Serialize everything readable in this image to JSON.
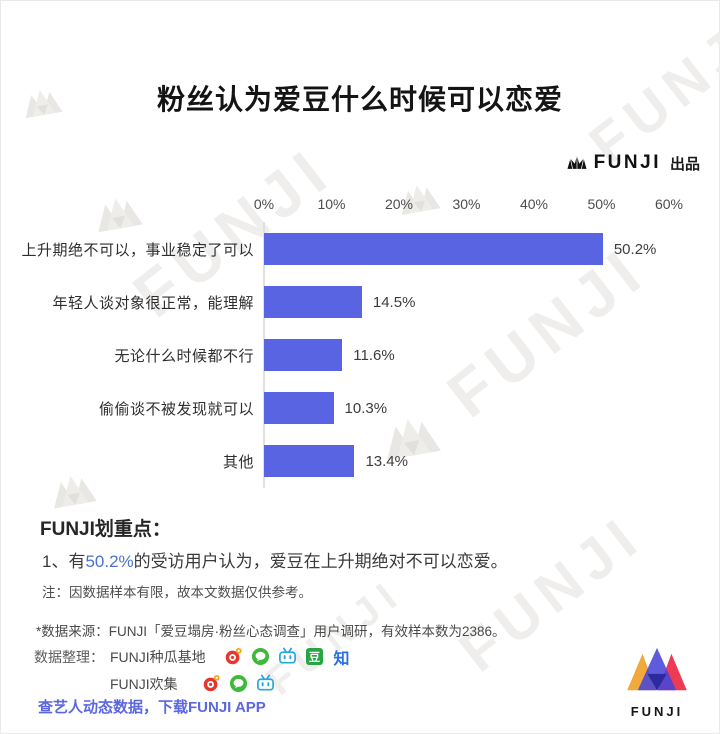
{
  "page": {
    "title": "粉丝认为爱豆什么时候可以恋爱",
    "brand": "FUNJI",
    "brand_suffix": "出品"
  },
  "chart_data": {
    "type": "bar",
    "orientation": "horizontal",
    "title": "粉丝认为爱豆什么时候可以恋爱",
    "categories": [
      "上升期绝不可以，事业稳定了可以",
      "年轻人谈对象很正常，能理解",
      "无论什么时候都不行",
      "偷偷谈不被发现就可以",
      "其他"
    ],
    "values": [
      50.2,
      14.5,
      11.6,
      10.3,
      13.4
    ],
    "value_labels": [
      "50.2%",
      "14.5%",
      "11.6%",
      "10.3%",
      "13.4%"
    ],
    "x_ticks": [
      "0%",
      "10%",
      "20%",
      "30%",
      "40%",
      "50%",
      "60%"
    ],
    "xlim": [
      0,
      60
    ],
    "xlabel": "",
    "ylabel": "",
    "grid": "none",
    "legend": "none",
    "bar_color": "#5864e2"
  },
  "highlights": {
    "heading": "FUNJI划重点：",
    "point_prefix": "1、有",
    "point_value": "50.2%",
    "point_suffix": "的受访用户认为，爱豆在上升期绝对不可以恋爱。",
    "note": "注：因数据样本有限，故本文数据仅供参考。"
  },
  "footer": {
    "source": "*数据来源：FUNJI「爱豆塌房·粉丝心态调查」用户调研，有效样本数为2386。",
    "credits_label": "数据整理：",
    "credit_rows": [
      {
        "name": "FUNJI种瓜基地",
        "icons": [
          "weibo",
          "wechat",
          "bilibili",
          "douban",
          "zhihu"
        ]
      },
      {
        "name": "FUNJI欢集",
        "icons": [
          "weibo",
          "wechat",
          "bilibili"
        ]
      }
    ],
    "douban_glyph": "豆",
    "zhihu_glyph": "知",
    "app_link": "查艺人动态数据，下载FUNJI APP",
    "logo_text": "FUNJI"
  },
  "watermark": {
    "text": "FUNJI"
  },
  "colors": {
    "bar": "#5864e2",
    "highlight_pct": "#4a71cc",
    "app_link": "#5b67e0",
    "weibo": "#e6362d",
    "wechat": "#3eb93c",
    "bilibili": "#29a7dd",
    "douban": "#26a545",
    "zhihu": "#2a6fe8"
  }
}
